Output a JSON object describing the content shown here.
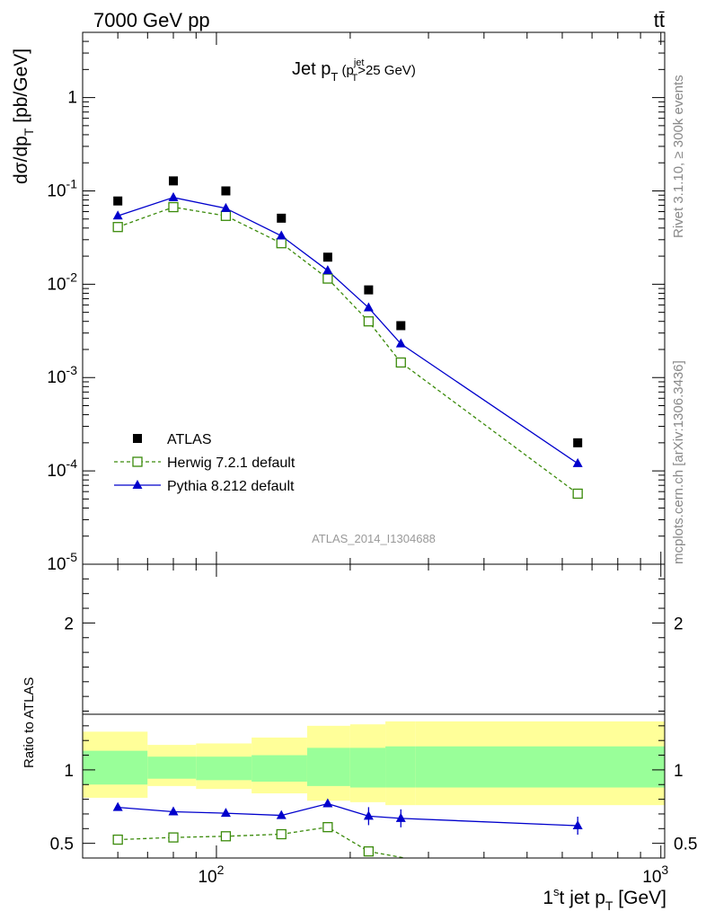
{
  "header": {
    "left": "7000 GeV pp",
    "right": "tt̄"
  },
  "side_text": {
    "rivet": "Rivet 3.1.10, ≥ 300k events",
    "mcplots": "mcplots.cern.ch [arXiv:1306.3436]"
  },
  "colors": {
    "atlas": "#000000",
    "herwig": "#3a8a0a",
    "pythia": "#0000cc",
    "band_outer": "#ffff99",
    "band_inner": "#99ff99"
  },
  "chart_data": [
    {
      "type": "scatter",
      "panel": "main",
      "title": "Jet p_T (p_T^jet>25 GeV)",
      "ylabel": "dσ/dp_T [pb/GeV]",
      "xlabel": "1st jet p_T [GeV]",
      "x_scale": "log",
      "y_scale": "log",
      "xlim": [
        50,
        1020
      ],
      "ylim": [
        1e-05,
        5
      ],
      "y_ticks": [
        "1",
        "10^-1",
        "10^-2",
        "10^-3",
        "10^-4",
        "10^-5"
      ],
      "x_tick_labels": [
        "10^2",
        "10^3"
      ],
      "watermark": "ATLAS_2014_I1304688",
      "legend_position": "lower-left",
      "series": [
        {
          "name": "ATLAS",
          "marker": "square",
          "x": [
            60,
            80,
            105,
            140,
            178,
            220,
            260,
            650
          ],
          "y": [
            0.078,
            0.128,
            0.1,
            0.051,
            0.0195,
            0.0087,
            0.0036,
            0.0002
          ]
        },
        {
          "name": "Herwig 7.2.1 default",
          "marker": "open-square",
          "line": "dashed",
          "x": [
            60,
            80,
            105,
            140,
            178,
            220,
            260,
            650
          ],
          "y": [
            0.041,
            0.067,
            0.054,
            0.0275,
            0.0115,
            0.004,
            0.00145,
            5.7e-05
          ]
        },
        {
          "name": "Pythia 8.212 default",
          "marker": "triangle",
          "line": "solid",
          "x": [
            60,
            80,
            105,
            140,
            178,
            220,
            260,
            650
          ],
          "y": [
            0.054,
            0.085,
            0.065,
            0.033,
            0.014,
            0.0056,
            0.0023,
            0.00012
          ]
        }
      ]
    },
    {
      "type": "line",
      "panel": "ratio",
      "ylabel": "Ratio to ATLAS",
      "ylim": [
        0.4,
        2.4
      ],
      "y_ticks": [
        "0.5",
        "1",
        "2"
      ],
      "bands": {
        "edges": [
          50,
          70,
          90,
          120,
          160,
          200,
          240,
          280,
          1020
        ],
        "outer_lo": [
          0.81,
          0.89,
          0.87,
          0.84,
          0.79,
          0.78,
          0.76,
          0.76
        ],
        "outer_hi": [
          1.26,
          1.17,
          1.18,
          1.22,
          1.3,
          1.31,
          1.33,
          1.33
        ],
        "inner_lo": [
          0.9,
          0.94,
          0.93,
          0.92,
          0.89,
          0.88,
          0.88,
          0.88
        ],
        "inner_hi": [
          1.13,
          1.09,
          1.09,
          1.1,
          1.15,
          1.15,
          1.16,
          1.16
        ]
      },
      "series": [
        {
          "name": "Herwig 7.2.1 default",
          "x": [
            60,
            80,
            105,
            140,
            178,
            220,
            265
          ],
          "y": [
            0.525,
            0.54,
            0.548,
            0.562,
            0.61,
            0.445,
            0.4
          ]
        },
        {
          "name": "Pythia 8.212 default",
          "x": [
            60,
            80,
            105,
            140,
            178,
            220,
            260,
            650
          ],
          "y": [
            0.745,
            0.715,
            0.705,
            0.69,
            0.77,
            0.685,
            0.67,
            0.62
          ]
        }
      ]
    }
  ]
}
